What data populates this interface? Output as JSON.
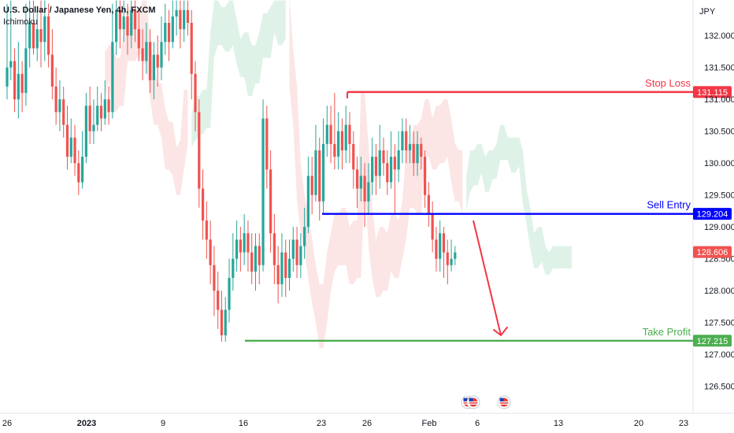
{
  "legend": {
    "symbol_title": "U.S. Dollar / Japanese Yen, 4h, FXCM",
    "indicator": "Ichimoku"
  },
  "chart_data": {
    "type": "candlestick",
    "currency_label": "JPY",
    "y_range": [
      126.2,
      132.55
    ],
    "y_ticks": [
      "126.500",
      "127.000",
      "127.500",
      "128.000",
      "128.500",
      "129.000",
      "129.500",
      "130.000",
      "130.500",
      "131.000",
      "131.500",
      "132.000"
    ],
    "y_tick_values": [
      126.5,
      127.0,
      127.5,
      128.0,
      128.5,
      129.0,
      129.5,
      130.0,
      130.5,
      131.0,
      131.5,
      132.0
    ],
    "x_ticks": [
      {
        "label": "26",
        "bold": false
      },
      {
        "label": "2023",
        "bold": true
      },
      {
        "label": "9",
        "bold": false
      },
      {
        "label": "16",
        "bold": false
      },
      {
        "label": "23",
        "bold": false
      },
      {
        "label": "26",
        "bold": false
      },
      {
        "label": "Feb",
        "bold": false
      },
      {
        "label": "6",
        "bold": false
      },
      {
        "label": "13",
        "bold": false
      },
      {
        "label": "20",
        "bold": false
      },
      {
        "label": "23",
        "bold": false
      }
    ],
    "price_levels": [
      {
        "name": "Stop Loss",
        "value": 131.115,
        "label": "131.115",
        "color": "#f23645"
      },
      {
        "name": "Sell Entry",
        "value": 129.204,
        "label": "129.204",
        "color": "#0000ff"
      },
      {
        "name": "Take Profit",
        "value": 127.215,
        "label": "127.215",
        "color": "#4caf50"
      }
    ],
    "current_price": {
      "value": 128.606,
      "label": "128.606",
      "color": "#ef5350"
    },
    "colors": {
      "up": "#26a69a",
      "down": "#ef5350",
      "cloud_bearish": "#fbdcdc",
      "cloud_bullish": "#d4ede0",
      "arrow": "#f23645"
    },
    "forecast_arrow": {
      "from": 129.1,
      "to": 127.3
    },
    "candles": [
      [
        131.2,
        131.5,
        132.5,
        131.0
      ],
      [
        131.5,
        131.6,
        132.55,
        131.3
      ],
      [
        131.6,
        131.0,
        131.8,
        130.8
      ],
      [
        131.0,
        131.4,
        131.9,
        130.7
      ],
      [
        131.4,
        131.1,
        131.6,
        130.8
      ],
      [
        131.1,
        131.8,
        132.5,
        130.9
      ],
      [
        131.8,
        132.2,
        132.55,
        131.5
      ],
      [
        132.2,
        131.8,
        132.55,
        131.7
      ],
      [
        131.8,
        132.1,
        132.4,
        131.6
      ],
      [
        132.1,
        131.9,
        132.55,
        131.5
      ],
      [
        131.9,
        132.3,
        132.55,
        131.6
      ],
      [
        132.3,
        131.7,
        132.5,
        131.5
      ],
      [
        131.7,
        131.2,
        132.1,
        131.0
      ],
      [
        131.2,
        130.8,
        131.5,
        130.6
      ],
      [
        130.8,
        131.0,
        131.3,
        130.5
      ],
      [
        131.0,
        130.6,
        131.2,
        130.4
      ],
      [
        130.6,
        130.1,
        130.9,
        129.9
      ],
      [
        130.1,
        130.4,
        130.7,
        130.0
      ],
      [
        130.4,
        130.0,
        130.6,
        129.8
      ],
      [
        130.0,
        129.7,
        130.2,
        129.5
      ],
      [
        129.7,
        130.1,
        130.5,
        129.6
      ],
      [
        130.1,
        130.9,
        131.1,
        130.0
      ],
      [
        130.9,
        130.5,
        131.2,
        130.3
      ],
      [
        130.5,
        130.6,
        131.0,
        130.3
      ],
      [
        130.6,
        130.9,
        131.2,
        130.5
      ],
      [
        130.9,
        130.7,
        131.1,
        130.5
      ],
      [
        130.7,
        131.0,
        131.3,
        130.6
      ],
      [
        131.0,
        130.8,
        131.2,
        130.6
      ],
      [
        130.8,
        131.9,
        132.5,
        130.7
      ],
      [
        131.9,
        132.4,
        132.55,
        131.7
      ],
      [
        132.4,
        132.1,
        132.55,
        131.8
      ],
      [
        132.1,
        132.3,
        132.55,
        131.9
      ],
      [
        132.3,
        132.0,
        132.5,
        131.7
      ],
      [
        132.0,
        132.4,
        132.55,
        131.8
      ],
      [
        132.4,
        132.1,
        132.55,
        131.9
      ],
      [
        132.1,
        131.8,
        132.4,
        131.6
      ],
      [
        131.8,
        131.6,
        132.1,
        131.3
      ],
      [
        131.6,
        131.9,
        132.2,
        131.4
      ],
      [
        131.9,
        131.3,
        132.1,
        131.1
      ],
      [
        131.3,
        131.7,
        131.9,
        131.0
      ],
      [
        131.7,
        131.5,
        132.0,
        131.2
      ],
      [
        131.5,
        131.9,
        132.3,
        131.3
      ],
      [
        131.9,
        132.2,
        132.5,
        131.7
      ],
      [
        132.2,
        131.9,
        132.4,
        131.6
      ],
      [
        131.9,
        132.3,
        132.55,
        131.8
      ],
      [
        132.3,
        132.4,
        132.55,
        132.0
      ],
      [
        132.4,
        132.1,
        132.55,
        131.8
      ],
      [
        132.1,
        132.4,
        132.55,
        131.9
      ],
      [
        132.4,
        132.2,
        132.55,
        132.0
      ],
      [
        132.2,
        131.4,
        132.4,
        131.0
      ],
      [
        131.4,
        130.8,
        131.6,
        130.5
      ],
      [
        130.8,
        129.6,
        131.0,
        129.3
      ],
      [
        129.6,
        129.1,
        129.9,
        128.8
      ],
      [
        129.1,
        128.8,
        129.4,
        128.5
      ],
      [
        128.8,
        128.4,
        129.1,
        128.1
      ],
      [
        128.4,
        128.0,
        128.7,
        127.6
      ],
      [
        128.0,
        127.7,
        128.3,
        127.4
      ],
      [
        127.7,
        127.3,
        128.0,
        127.2
      ],
      [
        127.3,
        127.7,
        127.9,
        127.2
      ],
      [
        127.7,
        128.2,
        128.5,
        127.5
      ],
      [
        128.2,
        128.5,
        128.9,
        128.0
      ],
      [
        128.5,
        128.8,
        129.1,
        128.3
      ],
      [
        128.8,
        128.6,
        129.0,
        128.3
      ],
      [
        128.6,
        128.9,
        129.2,
        128.4
      ],
      [
        128.9,
        128.6,
        129.1,
        128.3
      ],
      [
        128.6,
        128.3,
        128.9,
        128.1
      ],
      [
        128.3,
        128.7,
        128.9,
        128.0
      ],
      [
        128.7,
        128.4,
        128.9,
        128.1
      ],
      [
        128.4,
        130.7,
        131.0,
        128.3
      ],
      [
        130.7,
        129.9,
        130.9,
        129.6
      ],
      [
        129.9,
        128.9,
        130.2,
        128.6
      ],
      [
        128.9,
        128.4,
        129.2,
        128.1
      ],
      [
        128.4,
        128.1,
        128.7,
        127.8
      ],
      [
        128.1,
        128.6,
        128.9,
        127.9
      ],
      [
        128.6,
        128.2,
        128.8,
        127.9
      ],
      [
        128.2,
        128.5,
        128.8,
        128.0
      ],
      [
        128.5,
        128.8,
        129.0,
        128.3
      ],
      [
        128.8,
        128.4,
        129.0,
        128.2
      ],
      [
        128.4,
        128.7,
        128.9,
        128.2
      ],
      [
        128.7,
        129.0,
        129.3,
        128.5
      ],
      [
        129.0,
        129.8,
        130.1,
        128.9
      ],
      [
        129.8,
        129.5,
        130.1,
        129.2
      ],
      [
        129.5,
        130.2,
        130.6,
        129.4
      ],
      [
        130.2,
        129.4,
        130.4,
        129.1
      ],
      [
        129.4,
        130.3,
        130.7,
        129.2
      ],
      [
        130.3,
        130.6,
        130.9,
        130.1
      ],
      [
        130.6,
        130.3,
        130.9,
        130.0
      ],
      [
        130.3,
        130.1,
        131.1,
        129.9
      ],
      [
        130.1,
        130.5,
        130.8,
        129.9
      ],
      [
        130.5,
        130.2,
        130.7,
        129.9
      ],
      [
        130.2,
        130.6,
        130.9,
        130.0
      ],
      [
        130.6,
        130.3,
        130.8,
        130.0
      ],
      [
        130.3,
        129.9,
        130.5,
        129.6
      ],
      [
        129.9,
        129.6,
        130.1,
        129.3
      ],
      [
        129.6,
        129.8,
        130.1,
        129.4
      ],
      [
        129.8,
        129.4,
        130.0,
        129.0
      ],
      [
        129.4,
        129.7,
        130.0,
        129.2
      ],
      [
        129.7,
        130.1,
        130.4,
        129.5
      ],
      [
        130.1,
        129.8,
        130.3,
        129.5
      ],
      [
        129.8,
        130.2,
        130.6,
        129.6
      ],
      [
        130.2,
        130.0,
        130.4,
        129.8
      ],
      [
        130.0,
        129.7,
        130.2,
        129.5
      ],
      [
        129.7,
        130.1,
        130.5,
        129.6
      ],
      [
        130.1,
        129.9,
        130.3,
        129.2
      ],
      [
        129.9,
        130.2,
        130.5,
        129.7
      ],
      [
        130.2,
        130.5,
        130.7,
        130.0
      ],
      [
        130.5,
        130.2,
        130.7,
        130.0
      ],
      [
        130.2,
        130.3,
        130.6,
        130.0
      ],
      [
        130.3,
        130.0,
        130.5,
        129.8
      ],
      [
        130.0,
        130.3,
        130.5,
        129.8
      ],
      [
        130.3,
        130.1,
        130.4,
        129.9
      ],
      [
        130.1,
        129.5,
        130.2,
        129.3
      ],
      [
        129.5,
        129.2,
        129.7,
        129.0
      ],
      [
        129.2,
        128.8,
        129.4,
        128.6
      ],
      [
        128.8,
        128.5,
        129.0,
        128.3
      ],
      [
        128.5,
        128.9,
        129.1,
        128.3
      ],
      [
        128.9,
        128.6,
        129.0,
        128.2
      ],
      [
        128.6,
        128.4,
        128.8,
        128.1
      ],
      [
        128.4,
        128.5,
        128.8,
        128.3
      ],
      [
        128.5,
        128.6,
        128.7,
        128.4
      ]
    ]
  }
}
